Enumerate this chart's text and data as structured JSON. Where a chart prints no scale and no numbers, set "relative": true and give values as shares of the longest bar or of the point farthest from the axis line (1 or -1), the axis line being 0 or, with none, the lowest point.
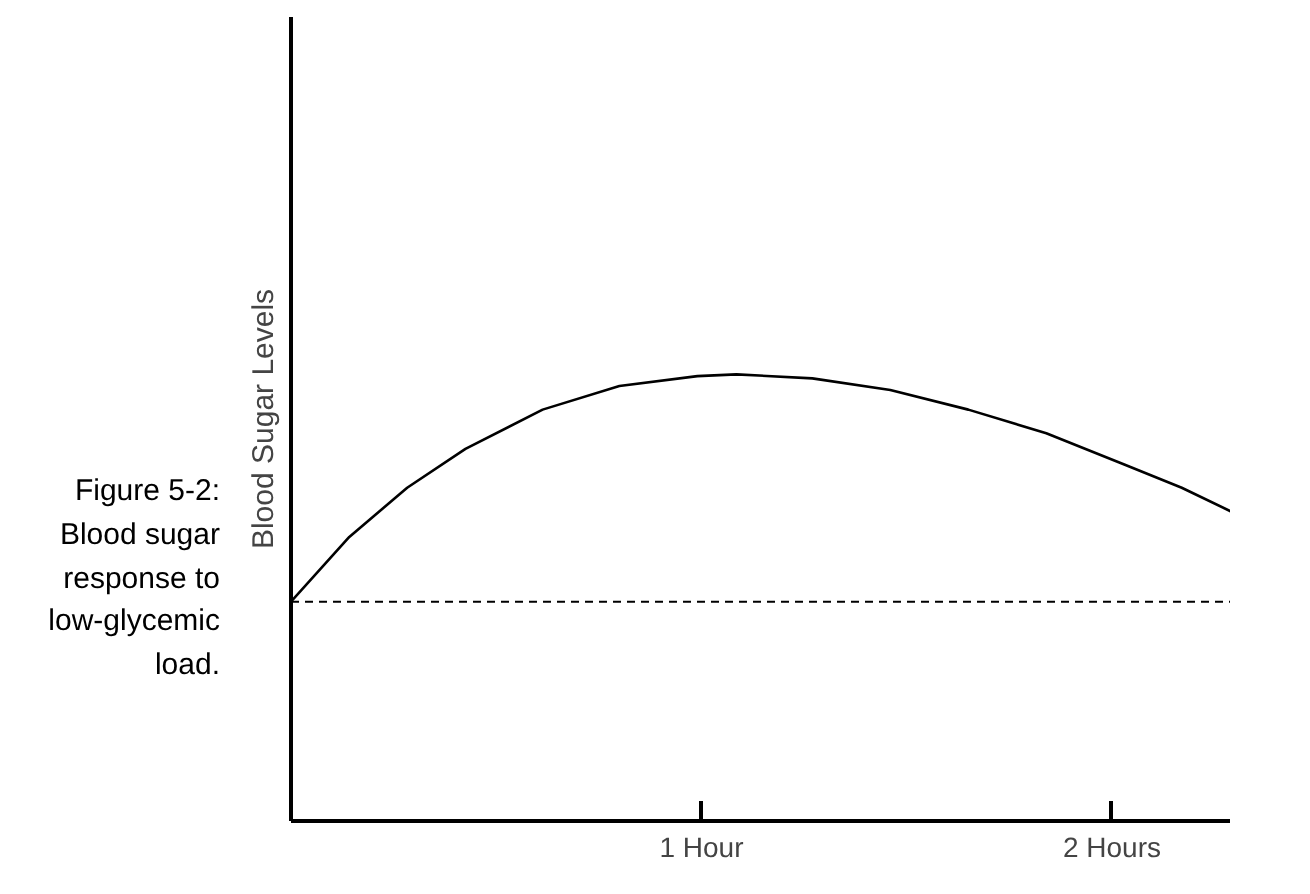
{
  "chart_data": {
    "type": "line",
    "relative": true,
    "ylabel": "Blood Sugar Levels",
    "annotations": [
      "Figure 5-2: Blood sugar response to low-glycemic load."
    ],
    "x": [
      0,
      0.142,
      0.283,
      0.425,
      0.613,
      0.8,
      0.99,
      1.085,
      1.27,
      1.46,
      1.65,
      1.84,
      2.03,
      2.17,
      2.29
    ],
    "series": [
      {
        "color": "#000000",
        "values": [
          0.491,
          0.636,
          0.746,
          0.833,
          0.921,
          0.974,
          0.996,
          1.0,
          0.991,
          0.965,
          0.921,
          0.868,
          0.798,
          0.746,
          0.693
        ]
      }
    ],
    "xlim": [
      0,
      2.29
    ],
    "xticks": [
      {
        "value": 1,
        "label": "1 Hour"
      },
      {
        "value": 2,
        "label": "2 Hours"
      }
    ],
    "ref_lines": [
      {
        "axis": "y",
        "value": 0.491,
        "label": null,
        "line_style": "dashed",
        "color": "#000000"
      }
    ],
    "grid": false,
    "marker": "none",
    "line_style": "solid"
  }
}
